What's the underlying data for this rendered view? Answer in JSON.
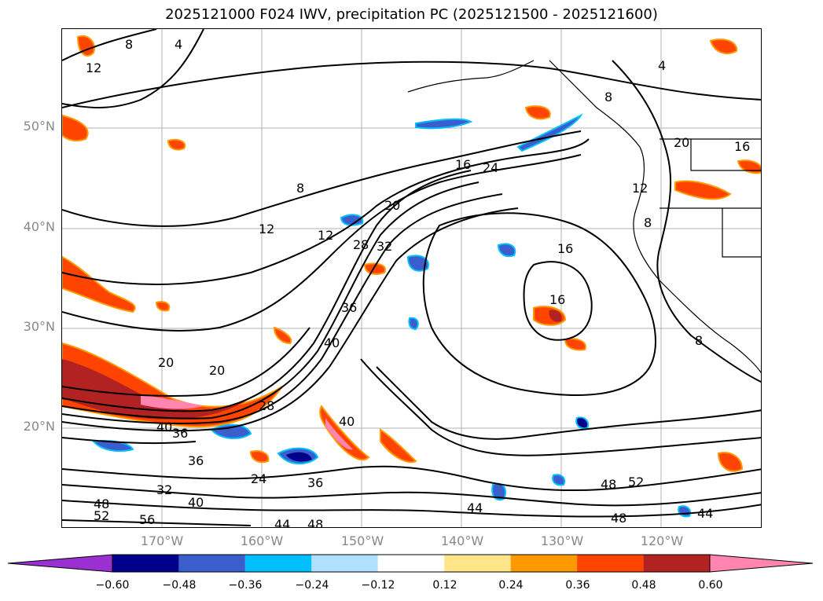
{
  "title": "2025121000 F024 IWV, precipitation PC (2025121500 - 2025121600)",
  "lat_labels": [
    "50°N",
    "40°N",
    "30°N",
    "20°N"
  ],
  "lon_labels": [
    "170°W",
    "160°W",
    "150°W",
    "140°W",
    "130°W",
    "120°W"
  ],
  "contour_labels": [
    "12",
    "8",
    "4",
    "4",
    "8",
    "16",
    "16",
    "24",
    "8",
    "20",
    "12",
    "12",
    "28",
    "32",
    "16",
    "36",
    "20",
    "20",
    "40",
    "40",
    "28",
    "40",
    "36",
    "36",
    "36",
    "24",
    "32",
    "40",
    "44",
    "48",
    "52",
    "56",
    "48",
    "52",
    "48",
    "44",
    "48",
    "44",
    "20",
    "12",
    "8",
    "8",
    "16"
  ],
  "colorbar": {
    "ticks": [
      "−0.60",
      "−0.48",
      "−0.36",
      "−0.24",
      "−0.12",
      "0.12",
      "0.24",
      "0.36",
      "0.48",
      "0.60"
    ],
    "colors": [
      "#9b30d2",
      "#00008b",
      "#3a5fcd",
      "#00bfff",
      "#b0e0ff",
      "#ffffff",
      "#ffe68a",
      "#ff9900",
      "#ff4400",
      "#b22222",
      "#ff85b0"
    ]
  }
}
